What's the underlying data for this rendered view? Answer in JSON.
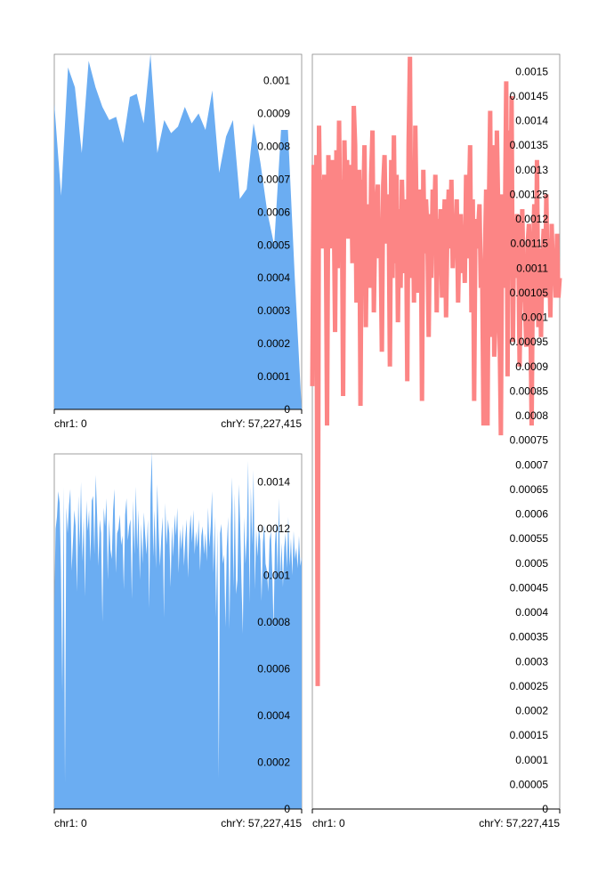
{
  "colors": {
    "area": "#6badf2",
    "line": "#fc8585",
    "axis": "#000000",
    "frame": "#888888"
  },
  "chart_data": [
    {
      "id": "top-left",
      "type": "area",
      "x_start_label": "chr1: 0",
      "x_end_label": "chrY: 57,227,415",
      "ylim": [
        0,
        0.00108
      ],
      "y_ticks": [
        {
          "value": 0,
          "label": "0"
        },
        {
          "value": 0.0001,
          "label": "0.0001"
        },
        {
          "value": 0.0002,
          "label": "0.0002"
        },
        {
          "value": 0.0003,
          "label": "0.0003"
        },
        {
          "value": 0.0004,
          "label": "0.0004"
        },
        {
          "value": 0.0005,
          "label": "0.0005"
        },
        {
          "value": 0.0006,
          "label": "0.0006"
        },
        {
          "value": 0.0007,
          "label": "0.0007"
        },
        {
          "value": 0.0008,
          "label": "0.0008"
        },
        {
          "value": 0.0009,
          "label": "0.0009"
        },
        {
          "value": 0.001,
          "label": "0.001"
        }
      ],
      "values": [
        0.00093,
        0.00065,
        0.00104,
        0.00098,
        0.00078,
        0.00106,
        0.00098,
        0.00092,
        0.00088,
        0.00089,
        0.00081,
        0.00095,
        0.00096,
        0.00087,
        0.00108,
        0.00078,
        0.00088,
        0.00084,
        0.00086,
        0.00092,
        0.00087,
        0.0009,
        0.00085,
        0.00097,
        0.00072,
        0.00083,
        0.00088,
        0.00064,
        0.00067,
        0.00087,
        0.00075,
        0.0006,
        0.0005,
        0.00085,
        0.00085,
        0.0004,
        0.0
      ]
    },
    {
      "id": "bottom-left",
      "type": "area",
      "x_start_label": "chr1: 0",
      "x_end_label": "chrY: 57,227,415",
      "ylim": [
        0,
        0.00152
      ],
      "y_ticks": [
        {
          "value": 0,
          "label": "0"
        },
        {
          "value": 0.0002,
          "label": "0.0002"
        },
        {
          "value": 0.0004,
          "label": "0.0004"
        },
        {
          "value": 0.0006,
          "label": "0.0006"
        },
        {
          "value": 0.0008,
          "label": "0.0008"
        },
        {
          "value": 0.001,
          "label": "0.001"
        },
        {
          "value": 0.0012,
          "label": "0.0012"
        },
        {
          "value": 0.0014,
          "label": "0.0014"
        }
      ],
      "values": [
        0.00086,
        0.0012,
        0.00125,
        0.00136,
        0.00131,
        0.00102,
        0.0005,
        0.00138,
        0.00011,
        0.00129,
        0.00118,
        0.0013,
        0.00137,
        0.00102,
        0.00115,
        0.00128,
        0.00121,
        0.00093,
        0.00134,
        0.00112,
        0.0014,
        0.00106,
        0.00125,
        0.00091,
        0.00132,
        0.00119,
        0.00128,
        0.00106,
        0.00132,
        0.00134,
        0.00109,
        0.00143,
        0.00126,
        0.00104,
        0.00124,
        0.00118,
        0.0008,
        0.00129,
        0.00121,
        0.00133,
        0.00098,
        0.00124,
        0.00111,
        0.00107,
        0.00128,
        0.00137,
        0.00101,
        0.00118,
        0.0012,
        0.00126,
        0.00113,
        0.00117,
        0.00094,
        0.00126,
        0.00133,
        0.00115,
        0.00121,
        0.00124,
        0.0009,
        0.00132,
        0.00109,
        0.00138,
        0.00111,
        0.00128,
        0.00098,
        0.00122,
        0.00105,
        0.00127,
        0.00117,
        0.00109,
        0.00124,
        0.00086,
        0.00135,
        0.00153,
        0.00108,
        0.00128,
        0.00103,
        0.00139,
        0.0012,
        0.00104,
        0.00116,
        0.00125,
        0.00082,
        0.00131,
        0.00113,
        0.00124,
        0.00118,
        0.00095,
        0.00121,
        0.00108,
        0.00126,
        0.00117,
        0.00129,
        0.00101,
        0.0012,
        0.00111,
        0.00122,
        0.00104,
        0.00116,
        0.00124,
        0.00099,
        0.00118,
        0.00126,
        0.00114,
        0.00128,
        0.00109,
        0.00119,
        0.00112,
        0.00124,
        0.00102,
        0.00117,
        0.00121,
        0.00109,
        0.00118,
        0.00106,
        0.00129,
        0.00112,
        0.00121,
        0.00136,
        0.00101,
        0.00125,
        0.00082,
        0.0012,
        0.00013,
        0.00118,
        0.00122,
        0.00105,
        0.00109,
        0.00078,
        0.00112,
        0.00125,
        0.00077,
        0.00122,
        0.00142,
        0.00095,
        0.00135,
        0.00092,
        0.00098,
        0.00139,
        0.00122,
        0.00097,
        0.00075,
        0.00125,
        0.00105,
        0.00117,
        0.00149,
        0.00088,
        0.00138,
        0.00113,
        0.00145,
        0.00094,
        0.0012,
        0.00108,
        0.00121,
        0.00115,
        0.00089,
        0.00114,
        0.00122,
        0.00105,
        0.00102,
        0.00093,
        0.00115,
        0.00119,
        0.00102,
        0.00077,
        0.00113,
        0.00123,
        0.00099,
        0.00133,
        0.00098,
        0.00114,
        0.00095,
        0.00112,
        0.00118,
        0.00103,
        0.00125,
        0.00104,
        0.00116,
        0.001,
        0.00119,
        0.00107,
        0.00112,
        0.00103,
        0.00117,
        0.00104,
        0.00108
      ]
    },
    {
      "id": "right",
      "type": "line",
      "x_start_label": "chr1: 0",
      "x_end_label": "chrY: 57,227,415",
      "ylim": [
        0,
        0.001535
      ],
      "y_ticks": [
        {
          "value": 0,
          "label": "0"
        },
        {
          "value": 5e-05,
          "label": "0.00005"
        },
        {
          "value": 0.0001,
          "label": "0.0001"
        },
        {
          "value": 0.00015,
          "label": "0.00015"
        },
        {
          "value": 0.0002,
          "label": "0.0002"
        },
        {
          "value": 0.00025,
          "label": "0.00025"
        },
        {
          "value": 0.0003,
          "label": "0.0003"
        },
        {
          "value": 0.00035,
          "label": "0.00035"
        },
        {
          "value": 0.0004,
          "label": "0.0004"
        },
        {
          "value": 0.00045,
          "label": "0.00045"
        },
        {
          "value": 0.0005,
          "label": "0.0005"
        },
        {
          "value": 0.00055,
          "label": "0.00055"
        },
        {
          "value": 0.0006,
          "label": "0.0006"
        },
        {
          "value": 0.00065,
          "label": "0.00065"
        },
        {
          "value": 0.0007,
          "label": "0.0007"
        },
        {
          "value": 0.00075,
          "label": "0.00075"
        },
        {
          "value": 0.0008,
          "label": "0.0008"
        },
        {
          "value": 0.00085,
          "label": "0.00085"
        },
        {
          "value": 0.0009,
          "label": "0.0009"
        },
        {
          "value": 0.00095,
          "label": "0.00095"
        },
        {
          "value": 0.001,
          "label": "0.001"
        },
        {
          "value": 0.00105,
          "label": "0.00105"
        },
        {
          "value": 0.0011,
          "label": "0.0011"
        },
        {
          "value": 0.00115,
          "label": "0.00115"
        },
        {
          "value": 0.0012,
          "label": "0.0012"
        },
        {
          "value": 0.00125,
          "label": "0.00125"
        },
        {
          "value": 0.0013,
          "label": "0.0013"
        },
        {
          "value": 0.00135,
          "label": "0.00135"
        },
        {
          "value": 0.0014,
          "label": "0.0014"
        },
        {
          "value": 0.00145,
          "label": "0.00145"
        },
        {
          "value": 0.0015,
          "label": "0.0015"
        }
      ],
      "values": [
        0.00086,
        0.00131,
        0.00109,
        0.00133,
        0.00025,
        0.00139,
        0.00117,
        0.00128,
        0.00114,
        0.00129,
        0.00123,
        0.00078,
        0.00133,
        0.00114,
        0.00123,
        0.00132,
        0.00124,
        0.00097,
        0.00134,
        0.0011,
        0.0014,
        0.00114,
        0.00128,
        0.00084,
        0.00136,
        0.00121,
        0.00132,
        0.00116,
        0.00124,
        0.00131,
        0.00111,
        0.00143,
        0.00135,
        0.00103,
        0.00111,
        0.0013,
        0.00082,
        0.00128,
        0.00121,
        0.00135,
        0.00098,
        0.00123,
        0.00112,
        0.00106,
        0.00129,
        0.00138,
        0.00101,
        0.00119,
        0.00122,
        0.00127,
        0.00112,
        0.00116,
        0.00093,
        0.00127,
        0.00133,
        0.00115,
        0.00121,
        0.00125,
        0.0009,
        0.00132,
        0.00108,
        0.00137,
        0.00111,
        0.00129,
        0.00099,
        0.00122,
        0.00106,
        0.00128,
        0.00116,
        0.00109,
        0.00124,
        0.00087,
        0.00135,
        0.00153,
        0.00108,
        0.00128,
        0.00103,
        0.00139,
        0.00119,
        0.00105,
        0.00116,
        0.00126,
        0.00083,
        0.0013,
        0.00113,
        0.00124,
        0.00118,
        0.00096,
        0.00121,
        0.00108,
        0.00126,
        0.00118,
        0.00129,
        0.00101,
        0.0012,
        0.00112,
        0.00122,
        0.00104,
        0.00116,
        0.00124,
        0.001,
        0.00118,
        0.00126,
        0.00114,
        0.00128,
        0.0011,
        0.00119,
        0.00113,
        0.00124,
        0.00103,
        0.00117,
        0.00121,
        0.00109,
        0.00118,
        0.00107,
        0.00129,
        0.00112,
        0.00122,
        0.00135,
        0.00101,
        0.00124,
        0.00083,
        0.0012,
        0.00114,
        0.00118,
        0.00123,
        0.00106,
        0.0011,
        0.00078,
        0.00112,
        0.00126,
        0.00078,
        0.00121,
        0.00142,
        0.00096,
        0.00135,
        0.00092,
        0.00099,
        0.00138,
        0.00122,
        0.00098,
        0.00076,
        0.00125,
        0.00106,
        0.00117,
        0.00148,
        0.00088,
        0.00138,
        0.00113,
        0.00145,
        0.00095,
        0.0012,
        0.00108,
        0.00121,
        0.00116,
        0.0009,
        0.00113,
        0.00122,
        0.00106,
        0.00103,
        0.00094,
        0.00115,
        0.00119,
        0.00102,
        0.00078,
        0.00113,
        0.00123,
        0.001,
        0.00132,
        0.00098,
        0.00114,
        0.00096,
        0.00112,
        0.00118,
        0.00104,
        0.00125,
        0.00104,
        0.00116,
        0.001,
        0.00119,
        0.00107,
        0.00112,
        0.00104,
        0.00117,
        0.00104,
        0.00108
      ]
    }
  ]
}
